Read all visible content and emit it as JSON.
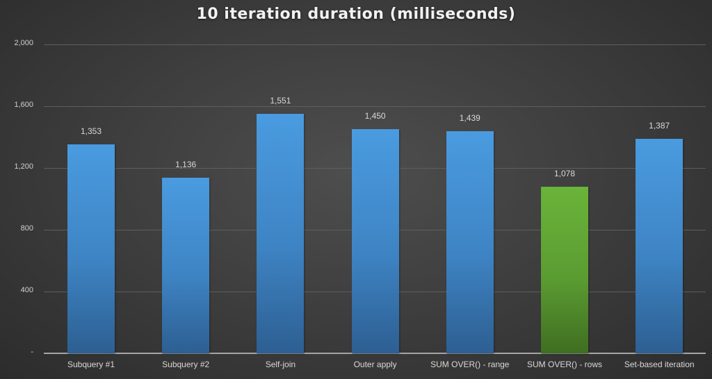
{
  "chart_data": {
    "type": "bar",
    "title": "10 iteration duration (milliseconds)",
    "xlabel": "",
    "ylabel": "",
    "categories": [
      "Subquery #1",
      "Subquery #2",
      "Self-join",
      "Outer apply",
      "SUM OVER() - range",
      "SUM OVER() - rows",
      "Set-based iteration"
    ],
    "values": [
      1353,
      1136,
      1551,
      1450,
      1439,
      1078,
      1387
    ],
    "value_labels": [
      "1,353",
      "1,136",
      "1,551",
      "1,450",
      "1,439",
      "1,078",
      "1,387"
    ],
    "highlighted_index": 5,
    "ylim": [
      0,
      2000
    ],
    "yticks": [
      0,
      400,
      800,
      1200,
      1600,
      2000
    ],
    "ytick_labels": [
      "-",
      "400",
      "800",
      "1,200",
      "1,600",
      "2,000"
    ],
    "grid": true,
    "legend": null,
    "colors": {
      "bar": "#4a9be0",
      "highlight": "#6ab43a",
      "background": "#3f3f3f",
      "gridline": "#5e5e5e",
      "text": "#d9d9d9"
    }
  }
}
